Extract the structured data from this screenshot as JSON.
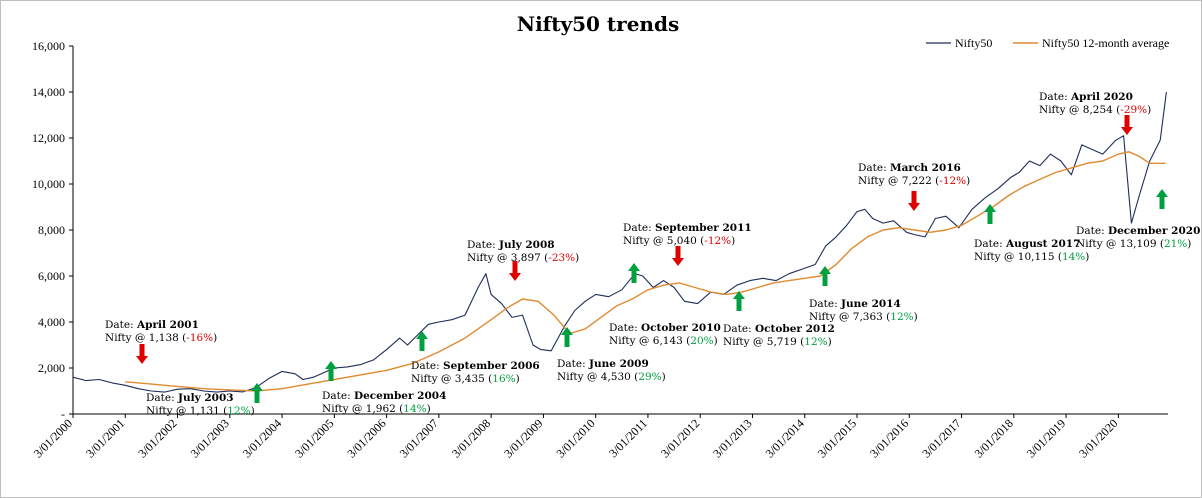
{
  "chart_data": {
    "type": "line",
    "title": "Nifty50 trends",
    "xlabel": "",
    "ylabel": "",
    "ylim": [
      0,
      16000
    ],
    "y_ticks": [
      "-",
      "2,000",
      "4,000",
      "6,000",
      "8,000",
      "10,000",
      "12,000",
      "14,000",
      "16,000"
    ],
    "y_tick_values": [
      0,
      2000,
      4000,
      6000,
      8000,
      10000,
      12000,
      14000,
      16000
    ],
    "x_ticks": [
      "3/01/2000",
      "3/01/2001",
      "3/01/2002",
      "3/01/2003",
      "3/01/2004",
      "3/01/2005",
      "3/01/2006",
      "3/01/2007",
      "3/01/2008",
      "3/01/2009",
      "3/01/2010",
      "3/01/2011",
      "3/01/2012",
      "3/01/2013",
      "3/01/2014",
      "3/01/2015",
      "3/01/2016",
      "3/01/2017",
      "3/01/2018",
      "3/01/2019",
      "3/01/2020"
    ],
    "x_tick_years": [
      2000,
      2001,
      2002,
      2003,
      2004,
      2005,
      2006,
      2007,
      2008,
      2009,
      2010,
      2011,
      2012,
      2013,
      2014,
      2015,
      2016,
      2017,
      2018,
      2019,
      2020
    ],
    "xlim_years": [
      2000.0,
      2020.95
    ],
    "grid": false,
    "legend_position": "top-right",
    "series": [
      {
        "name": "Nifty50",
        "color": "#1f2d5a",
        "x": [
          2000.0,
          2000.25,
          2000.5,
          2000.75,
          2001.0,
          2001.25,
          2001.5,
          2001.75,
          2002.0,
          2002.25,
          2002.5,
          2002.75,
          2003.0,
          2003.25,
          2003.5,
          2003.75,
          2004.0,
          2004.25,
          2004.4,
          2004.6,
          2004.8,
          2005.0,
          2005.25,
          2005.5,
          2005.75,
          2006.0,
          2006.25,
          2006.4,
          2006.6,
          2006.8,
          2007.0,
          2007.25,
          2007.5,
          2007.75,
          2007.9,
          2008.0,
          2008.2,
          2008.4,
          2008.6,
          2008.8,
          2008.95,
          2009.15,
          2009.4,
          2009.6,
          2009.8,
          2010.0,
          2010.25,
          2010.5,
          2010.75,
          2010.9,
          2011.1,
          2011.3,
          2011.5,
          2011.7,
          2011.95,
          2012.2,
          2012.45,
          2012.7,
          2012.95,
          2013.2,
          2013.45,
          2013.7,
          2013.95,
          2014.2,
          2014.4,
          2014.6,
          2014.8,
          2015.0,
          2015.15,
          2015.3,
          2015.5,
          2015.7,
          2015.95,
          2016.1,
          2016.3,
          2016.5,
          2016.7,
          2016.95,
          2017.2,
          2017.45,
          2017.7,
          2017.95,
          2018.1,
          2018.3,
          2018.5,
          2018.7,
          2018.9,
          2019.1,
          2019.3,
          2019.5,
          2019.7,
          2019.95,
          2020.1,
          2020.25,
          2020.4,
          2020.6,
          2020.8,
          2020.92
        ],
        "y": [
          1600,
          1450,
          1500,
          1350,
          1250,
          1100,
          1000,
          950,
          1080,
          1100,
          1000,
          950,
          1000,
          960,
          1150,
          1550,
          1850,
          1750,
          1500,
          1600,
          1800,
          2000,
          2050,
          2150,
          2350,
          2800,
          3300,
          3000,
          3450,
          3900,
          4000,
          4100,
          4300,
          5500,
          6100,
          5200,
          4800,
          4200,
          4300,
          3000,
          2800,
          2750,
          3800,
          4500,
          4900,
          5200,
          5100,
          5400,
          6100,
          6000,
          5500,
          5800,
          5500,
          4900,
          4800,
          5300,
          5200,
          5600,
          5800,
          5900,
          5800,
          6100,
          6300,
          6500,
          7300,
          7700,
          8200,
          8800,
          8900,
          8500,
          8300,
          8400,
          7900,
          7800,
          7700,
          8500,
          8600,
          8100,
          8900,
          9400,
          9800,
          10300,
          10500,
          11000,
          10800,
          11300,
          11000,
          10400,
          11700,
          11500,
          11300,
          11900,
          12100,
          8300,
          9500,
          11000,
          11900,
          14000
        ]
      },
      {
        "name": "Nifty50 12-month average",
        "color": "#e08a30",
        "x": [
          2001.0,
          2001.5,
          2002.0,
          2002.5,
          2003.0,
          2003.5,
          2004.0,
          2004.5,
          2005.0,
          2005.5,
          2006.0,
          2006.5,
          2007.0,
          2007.5,
          2008.0,
          2008.3,
          2008.6,
          2008.9,
          2009.2,
          2009.5,
          2009.8,
          2010.1,
          2010.4,
          2010.7,
          2011.0,
          2011.3,
          2011.6,
          2011.9,
          2012.2,
          2012.5,
          2012.8,
          2013.1,
          2013.4,
          2013.7,
          2014.0,
          2014.3,
          2014.6,
          2014.9,
          2015.2,
          2015.5,
          2015.8,
          2016.1,
          2016.4,
          2016.7,
          2017.0,
          2017.3,
          2017.6,
          2017.9,
          2018.2,
          2018.5,
          2018.8,
          2019.1,
          2019.4,
          2019.7,
          2020.0,
          2020.2,
          2020.4,
          2020.6,
          2020.9
        ],
        "y": [
          1400,
          1300,
          1200,
          1100,
          1050,
          1000,
          1100,
          1300,
          1500,
          1700,
          1900,
          2200,
          2700,
          3300,
          4100,
          4600,
          5000,
          4900,
          4300,
          3500,
          3700,
          4200,
          4700,
          5000,
          5400,
          5600,
          5700,
          5500,
          5300,
          5200,
          5300,
          5500,
          5700,
          5800,
          5900,
          6000,
          6500,
          7200,
          7700,
          8000,
          8100,
          8000,
          7900,
          8000,
          8200,
          8600,
          9000,
          9500,
          9900,
          10200,
          10500,
          10700,
          10900,
          11000,
          11300,
          11400,
          11200,
          10900,
          10900
        ]
      }
    ],
    "annotations": [
      {
        "lines": [
          [
            {
              "t": "Date: "
            },
            {
              "t": "April 2001",
              "b": true
            }
          ],
          [
            {
              "t": "Nifty @ 1,138 ("
            },
            {
              "t": "-16%",
              "c": "neg"
            },
            {
              "t": ")"
            }
          ]
        ],
        "arrow": "down"
      },
      {
        "lines": [
          [
            {
              "t": "Date: "
            },
            {
              "t": "July 2003",
              "b": true
            }
          ],
          [
            {
              "t": "Nifty @ 1,131 ("
            },
            {
              "t": "12%",
              "c": "pos"
            },
            {
              "t": ")"
            }
          ]
        ],
        "arrow": "up"
      },
      {
        "lines": [
          [
            {
              "t": "Date: "
            },
            {
              "t": "December 2004",
              "b": true
            }
          ],
          [
            {
              "t": "Nifty @ 1,962 ("
            },
            {
              "t": "14%",
              "c": "pos"
            },
            {
              "t": ")"
            }
          ]
        ],
        "arrow": "up"
      },
      {
        "lines": [
          [
            {
              "t": "Date: "
            },
            {
              "t": "September 2006",
              "b": true
            }
          ],
          [
            {
              "t": "Nifty @ 3,435 ("
            },
            {
              "t": "16%",
              "c": "pos"
            },
            {
              "t": ")"
            }
          ]
        ],
        "arrow": "up"
      },
      {
        "lines": [
          [
            {
              "t": "Date: "
            },
            {
              "t": "July 2008",
              "b": true
            }
          ],
          [
            {
              "t": "Nifty @ 3,897 ("
            },
            {
              "t": "-23%",
              "c": "neg"
            },
            {
              "t": ")"
            }
          ]
        ],
        "arrow": "down"
      },
      {
        "lines": [
          [
            {
              "t": "Date: "
            },
            {
              "t": "June 2009",
              "b": true
            }
          ],
          [
            {
              "t": "Nifty @ 4,530 ("
            },
            {
              "t": "29%",
              "c": "pos"
            },
            {
              "t": ")"
            }
          ]
        ],
        "arrow": "up"
      },
      {
        "lines": [
          [
            {
              "t": "Date: "
            },
            {
              "t": "October 2010",
              "b": true
            }
          ],
          [
            {
              "t": "Nifty @ 6,143 ("
            },
            {
              "t": "20%",
              "c": "pos"
            },
            {
              "t": ")"
            }
          ]
        ],
        "arrow": "up"
      },
      {
        "lines": [
          [
            {
              "t": "Date: "
            },
            {
              "t": "September 2011",
              "b": true
            }
          ],
          [
            {
              "t": "Nifty @ 5,040 ("
            },
            {
              "t": "-12%",
              "c": "neg"
            },
            {
              "t": ")"
            }
          ]
        ],
        "arrow": "down"
      },
      {
        "lines": [
          [
            {
              "t": "Date: "
            },
            {
              "t": "October 2012",
              "b": true
            }
          ],
          [
            {
              "t": "Nifty @ 5,719 ("
            },
            {
              "t": "12%",
              "c": "pos"
            },
            {
              "t": ")"
            }
          ]
        ],
        "arrow": "up"
      },
      {
        "lines": [
          [
            {
              "t": "Date: "
            },
            {
              "t": "June 2014",
              "b": true
            }
          ],
          [
            {
              "t": "Nifty @ 7,363 ("
            },
            {
              "t": "12%",
              "c": "pos"
            },
            {
              "t": ")"
            }
          ]
        ],
        "arrow": "up"
      },
      {
        "lines": [
          [
            {
              "t": "Date: "
            },
            {
              "t": "March 2016",
              "b": true
            }
          ],
          [
            {
              "t": "Nifty @ 7,222 ("
            },
            {
              "t": "-12%",
              "c": "neg"
            },
            {
              "t": ")"
            }
          ]
        ],
        "arrow": "down"
      },
      {
        "lines": [
          [
            {
              "t": "Date: "
            },
            {
              "t": "August 2017",
              "b": true
            }
          ],
          [
            {
              "t": "Nifty @ 10,115 ("
            },
            {
              "t": "14%",
              "c": "pos"
            },
            {
              "t": ")"
            }
          ]
        ],
        "arrow": "up"
      },
      {
        "lines": [
          [
            {
              "t": "Date: "
            },
            {
              "t": "April 2020",
              "b": true
            }
          ],
          [
            {
              "t": "Nifty @ 8,254 ("
            },
            {
              "t": "-29%",
              "c": "neg"
            },
            {
              "t": ")"
            }
          ]
        ],
        "arrow": "down"
      },
      {
        "lines": [
          [
            {
              "t": "Date: "
            },
            {
              "t": "December 2020",
              "b": true
            }
          ],
          [
            {
              "t": "Nifty @ 13,109 ("
            },
            {
              "t": "21%",
              "c": "pos"
            },
            {
              "t": ")"
            }
          ]
        ],
        "arrow": "up"
      }
    ],
    "colors": {
      "down_arrow": "#e00000",
      "up_arrow": "#00a040",
      "axis": "#000000"
    }
  }
}
